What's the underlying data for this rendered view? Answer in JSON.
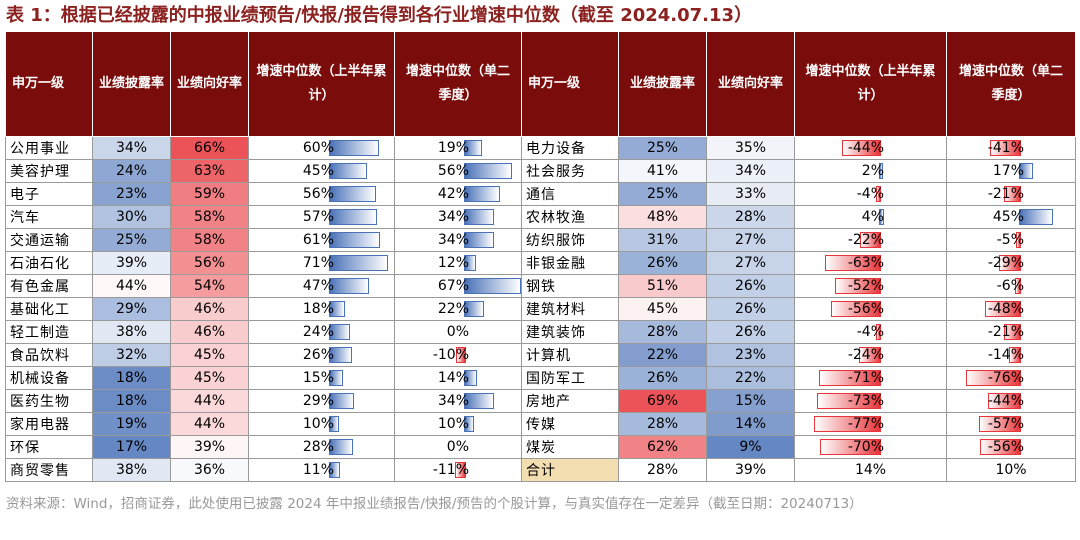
{
  "title": "表 1：根据已经披露的中报业绩预告/快报/报告得到各行业增速中位数（截至 2024.07.13）",
  "headers": [
    "申万一级",
    "业绩披露率",
    "业绩向好率",
    "增速中位数（上半年累计）",
    "增速中位数（单二季度）",
    "申万一级",
    "业绩披露率",
    "业绩向好率",
    "增速中位数（上半年累计）",
    "增速中位数（单二季度）"
  ],
  "left_rows": [
    {
      "name": "公用事业",
      "disclosure": "34%",
      "good": "66%",
      "h1": "60%",
      "q2": "19%",
      "h1_v": 60,
      "q2_v": 19,
      "disclosure_v": 34,
      "good_v": 66
    },
    {
      "name": "美容护理",
      "disclosure": "24%",
      "good": "63%",
      "h1": "45%",
      "q2": "56%",
      "h1_v": 45,
      "q2_v": 56,
      "disclosure_v": 24,
      "good_v": 63
    },
    {
      "name": "电子",
      "disclosure": "23%",
      "good": "59%",
      "h1": "56%",
      "q2": "42%",
      "h1_v": 56,
      "q2_v": 42,
      "disclosure_v": 23,
      "good_v": 59
    },
    {
      "name": "汽车",
      "disclosure": "30%",
      "good": "58%",
      "h1": "57%",
      "q2": "34%",
      "h1_v": 57,
      "q2_v": 34,
      "disclosure_v": 30,
      "good_v": 58
    },
    {
      "name": "交通运输",
      "disclosure": "25%",
      "good": "58%",
      "h1": "61%",
      "q2": "34%",
      "h1_v": 61,
      "q2_v": 34,
      "disclosure_v": 25,
      "good_v": 58
    },
    {
      "name": "石油石化",
      "disclosure": "39%",
      "good": "56%",
      "h1": "71%",
      "q2": "12%",
      "h1_v": 71,
      "q2_v": 12,
      "disclosure_v": 39,
      "good_v": 56
    },
    {
      "name": "有色金属",
      "disclosure": "44%",
      "good": "54%",
      "h1": "47%",
      "q2": "67%",
      "h1_v": 47,
      "q2_v": 67,
      "disclosure_v": 44,
      "good_v": 54
    },
    {
      "name": "基础化工",
      "disclosure": "29%",
      "good": "46%",
      "h1": "18%",
      "q2": "22%",
      "h1_v": 18,
      "q2_v": 22,
      "disclosure_v": 29,
      "good_v": 46
    },
    {
      "name": "轻工制造",
      "disclosure": "38%",
      "good": "46%",
      "h1": "24%",
      "q2": "0%",
      "h1_v": 24,
      "q2_v": 0,
      "disclosure_v": 38,
      "good_v": 46
    },
    {
      "name": "食品饮料",
      "disclosure": "32%",
      "good": "45%",
      "h1": "26%",
      "q2": "-10%",
      "h1_v": 26,
      "q2_v": -10,
      "disclosure_v": 32,
      "good_v": 45
    },
    {
      "name": "机械设备",
      "disclosure": "18%",
      "good": "45%",
      "h1": "15%",
      "q2": "14%",
      "h1_v": 15,
      "q2_v": 14,
      "disclosure_v": 18,
      "good_v": 45
    },
    {
      "name": "医药生物",
      "disclosure": "18%",
      "good": "44%",
      "h1": "29%",
      "q2": "34%",
      "h1_v": 29,
      "q2_v": 34,
      "disclosure_v": 18,
      "good_v": 44
    },
    {
      "name": "家用电器",
      "disclosure": "19%",
      "good": "44%",
      "h1": "10%",
      "q2": "10%",
      "h1_v": 10,
      "q2_v": 10,
      "disclosure_v": 19,
      "good_v": 44
    },
    {
      "name": "环保",
      "disclosure": "17%",
      "good": "39%",
      "h1": "28%",
      "q2": "0%",
      "h1_v": 28,
      "q2_v": 0,
      "disclosure_v": 17,
      "good_v": 39
    },
    {
      "name": "商贸零售",
      "disclosure": "38%",
      "good": "36%",
      "h1": "11%",
      "q2": "-11%",
      "h1_v": 11,
      "q2_v": -11,
      "disclosure_v": 38,
      "good_v": 36
    }
  ],
  "right_rows": [
    {
      "name": "电力设备",
      "disclosure": "25%",
      "good": "35%",
      "h1": "-44%",
      "q2": "-41%",
      "h1_v": -44,
      "q2_v": -41,
      "disclosure_v": 25,
      "good_v": 35
    },
    {
      "name": "社会服务",
      "disclosure": "41%",
      "good": "34%",
      "h1": "2%",
      "q2": "17%",
      "h1_v": 2,
      "q2_v": 17,
      "disclosure_v": 41,
      "good_v": 34
    },
    {
      "name": "通信",
      "disclosure": "25%",
      "good": "33%",
      "h1": "-4%",
      "q2": "-21%",
      "h1_v": -4,
      "q2_v": -21,
      "disclosure_v": 25,
      "good_v": 33
    },
    {
      "name": "农林牧渔",
      "disclosure": "48%",
      "good": "28%",
      "h1": "4%",
      "q2": "45%",
      "h1_v": 4,
      "q2_v": 45,
      "disclosure_v": 48,
      "good_v": 28
    },
    {
      "name": "纺织服饰",
      "disclosure": "31%",
      "good": "27%",
      "h1": "-22%",
      "q2": "-5%",
      "h1_v": -22,
      "q2_v": -5,
      "disclosure_v": 31,
      "good_v": 27
    },
    {
      "name": "非银金融",
      "disclosure": "26%",
      "good": "27%",
      "h1": "-63%",
      "q2": "-29%",
      "h1_v": -63,
      "q2_v": -29,
      "disclosure_v": 26,
      "good_v": 27
    },
    {
      "name": "钢铁",
      "disclosure": "51%",
      "good": "26%",
      "h1": "-52%",
      "q2": "-6%",
      "h1_v": -52,
      "q2_v": -6,
      "disclosure_v": 51,
      "good_v": 26
    },
    {
      "name": "建筑材料",
      "disclosure": "45%",
      "good": "26%",
      "h1": "-56%",
      "q2": "-48%",
      "h1_v": -56,
      "q2_v": -48,
      "disclosure_v": 45,
      "good_v": 26
    },
    {
      "name": "建筑装饰",
      "disclosure": "28%",
      "good": "26%",
      "h1": "-4%",
      "q2": "-21%",
      "h1_v": -4,
      "q2_v": -21,
      "disclosure_v": 28,
      "good_v": 26
    },
    {
      "name": "计算机",
      "disclosure": "22%",
      "good": "23%",
      "h1": "-24%",
      "q2": "-14%",
      "h1_v": -24,
      "q2_v": -14,
      "disclosure_v": 22,
      "good_v": 23
    },
    {
      "name": "国防军工",
      "disclosure": "26%",
      "good": "22%",
      "h1": "-71%",
      "q2": "-76%",
      "h1_v": -71,
      "q2_v": -76,
      "disclosure_v": 26,
      "good_v": 22
    },
    {
      "name": "房地产",
      "disclosure": "69%",
      "good": "15%",
      "h1": "-73%",
      "q2": "-44%",
      "h1_v": -73,
      "q2_v": -44,
      "disclosure_v": 69,
      "good_v": 15
    },
    {
      "name": "传媒",
      "disclosure": "28%",
      "good": "14%",
      "h1": "-77%",
      "q2": "-57%",
      "h1_v": -77,
      "q2_v": -57,
      "disclosure_v": 28,
      "good_v": 14
    },
    {
      "name": "煤炭",
      "disclosure": "62%",
      "good": "9%",
      "h1": "-70%",
      "q2": "-56%",
      "h1_v": -70,
      "q2_v": -56,
      "disclosure_v": 62,
      "good_v": 9
    },
    {
      "name": "合计",
      "disclosure": "28%",
      "good": "39%",
      "h1": "14%",
      "q2": "10%",
      "h1_v": 14,
      "q2_v": 10,
      "disclosure_v": 28,
      "good_v": 39,
      "plain": true
    }
  ],
  "source": "资料来源：Wind，招商证券，此处使用已披露 2024 年中报业绩报告/快报/预告的个股计算，与真实值存在一定差异（截至日期：20240713）",
  "colors": {
    "header_bg": "#7a0c0c",
    "title": "#8b2220",
    "blue": "#4a72b8",
    "red": "#e8353a",
    "total_bg": "#f2deb0"
  }
}
